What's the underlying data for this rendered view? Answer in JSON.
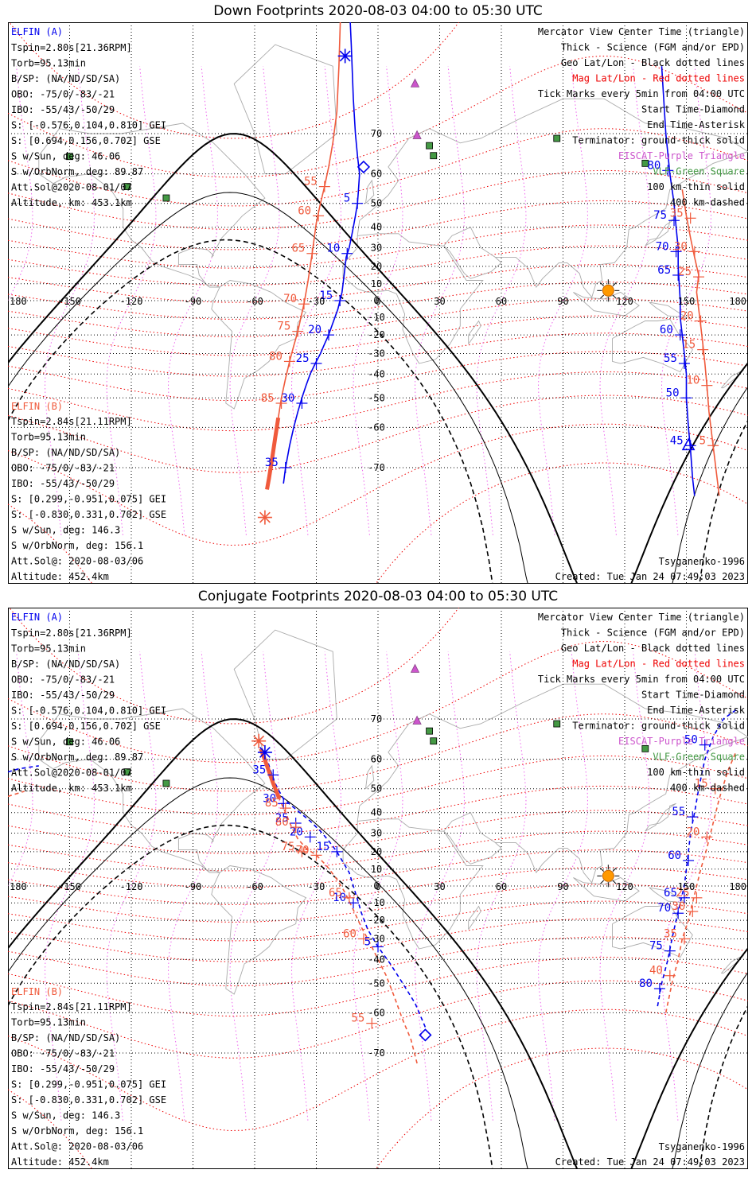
{
  "colors": {
    "elfin_a": "#0000ee",
    "elfin_b": "#f05a3c",
    "mag_grid": "#ee0000",
    "geo_grid": "#000000",
    "merid": "#ee66ee",
    "coast": "#aaaaaa",
    "purple": "#cc55cc",
    "green": "#449944"
  },
  "x_ticks": [
    "180",
    "-150",
    "-120",
    "-90",
    "-60",
    "-30",
    "0",
    "30",
    "60",
    "90",
    "120",
    "150",
    "180"
  ],
  "lat_labels": [
    "70",
    "60",
    "50",
    "40",
    "30",
    "20",
    "10",
    "0",
    "-10",
    "-20",
    "-30",
    "-40",
    "-50",
    "-60",
    "-70"
  ],
  "common": {
    "a_name": "ELFIN (A)",
    "a_info": [
      "Tspin=2.80s[21.36RPM]",
      "Torb=95.13min",
      "B/SP: (NA/ND/SD/SA)",
      "OBO: -75/0/-83/-21",
      "IBO: -55/43/-50/29",
      "S: [-0.576,0.104,0.810] GEI",
      "S: [0.694,0.156,0.702] GSE",
      "S w/Sun, deg: 46.06",
      "S w/OrbNorm, deg: 89.87",
      "Att.Sol@2020-08-01/07",
      "Altitude, km: 453.1km"
    ],
    "b_name": "ELFIN (B)",
    "b_info": [
      "Tspin=2.84s[21.11RPM]",
      "Torb=95.13min",
      "B/SP: (NA/ND/SD/SA)",
      "OBO: -75/0/-83/-21",
      "IBO: -55/43/-50/29",
      "S: [0.299,-0.951,0.075] GEI",
      "S: [-0.830,0.331,0.702] GSE",
      "S w/Sun, deg: 146.3",
      "S w/OrbNorm, deg: 156.1",
      "Att.Sol@: 2020-08-03/06",
      "Altitude: 452.4km"
    ],
    "legend": [
      "Mercator View Center Time (triangle)",
      "Thick - Science (FGM and/or EPD)",
      "Geo Lat/Lon - Black dotted lines",
      "Mag Lat/Lon - Red dotted lines",
      "Tick Marks every 5min from 04:00 UTC",
      "Start Time-Diamond",
      "End Time-Asterisk",
      "Terminator: ground-thick solid",
      "EISCAT-Purple Triangle",
      "VLF-Green Square",
      "100 km-thin solid",
      "400 km-dashed"
    ],
    "model": "Tsyganenko-1996",
    "created": "Created: Tue Jan 24 07:49:03 2023"
  },
  "panels": [
    {
      "title": "Down Footprints 2020-08-03 04:00 to 05:30 UTC",
      "a_track": [
        [
          -14,
          88
        ],
        [
          -13,
          82
        ],
        [
          -12,
          76
        ],
        [
          -11,
          70
        ],
        [
          -10,
          65
        ],
        [
          -9,
          60
        ],
        [
          -9.5,
          55
        ],
        [
          -10,
          50
        ],
        [
          -11,
          45
        ],
        [
          -12,
          40
        ],
        [
          -13,
          35
        ],
        [
          -14,
          30
        ],
        [
          -15.5,
          25
        ],
        [
          -16,
          20
        ],
        [
          -16.5,
          15
        ],
        [
          -17,
          10
        ],
        [
          -17.5,
          5
        ],
        [
          -18.5,
          0
        ],
        [
          -19.5,
          -5
        ],
        [
          -21,
          -10
        ],
        [
          -22.5,
          -15
        ],
        [
          -24,
          -20
        ],
        [
          -26,
          -25
        ],
        [
          -28,
          -30
        ],
        [
          -30.5,
          -35
        ],
        [
          -33,
          -40
        ],
        [
          -35,
          -45
        ],
        [
          -37,
          -50
        ],
        [
          -39,
          -55
        ],
        [
          -41,
          -60
        ],
        [
          -43,
          -65
        ],
        [
          -45,
          -70
        ],
        [
          -46,
          -73
        ]
      ],
      "a_ticks": [
        {
          "lon": -10,
          "lat": 50,
          "label": "5"
        },
        {
          "lon": -15,
          "lat": 27,
          "label": "10"
        },
        {
          "lon": -18.5,
          "lat": 0,
          "label": "15"
        },
        {
          "lon": -24,
          "lat": -20,
          "label": "20"
        },
        {
          "lon": -30,
          "lat": -35,
          "label": "25"
        },
        {
          "lon": -37,
          "lat": -52,
          "label": "30"
        },
        {
          "lon": -45,
          "lat": -70,
          "label": "35"
        },
        {
          "lon": 152,
          "lat": -65,
          "label": "45"
        },
        {
          "lon": 150,
          "lat": -50,
          "label": "50"
        },
        {
          "lon": 149,
          "lat": -35,
          "label": "55"
        },
        {
          "lon": 147,
          "lat": -20,
          "label": "60"
        },
        {
          "lon": 146,
          "lat": 15,
          "label": "65"
        },
        {
          "lon": 145,
          "lat": 28,
          "label": "70"
        },
        {
          "lon": 144,
          "lat": 43,
          "label": "75"
        },
        {
          "lon": 141,
          "lat": 61,
          "label": "80"
        }
      ],
      "a_track2": [
        [
          138,
          80
        ],
        [
          140,
          70
        ],
        [
          142,
          60
        ],
        [
          144,
          50
        ],
        [
          145,
          40
        ],
        [
          146,
          30
        ],
        [
          146,
          20
        ],
        [
          146.5,
          10
        ],
        [
          147,
          0
        ],
        [
          147,
          -10
        ],
        [
          148,
          -20
        ],
        [
          149,
          -30
        ],
        [
          150,
          -40
        ],
        [
          150,
          -50
        ],
        [
          151,
          -60
        ],
        [
          152,
          -66
        ],
        [
          153,
          -72
        ],
        [
          154,
          -75
        ]
      ],
      "a_start": [
        -7,
        62
      ],
      "a_end": [
        -16,
        81
      ],
      "a_center": [
        151,
        -65
      ],
      "b_track": [
        [
          -18,
          86
        ],
        [
          -19,
          80
        ],
        [
          -20,
          74
        ],
        [
          -22,
          68
        ],
        [
          -24,
          62
        ],
        [
          -26,
          56
        ],
        [
          -28,
          50
        ],
        [
          -30,
          42
        ],
        [
          -31,
          35
        ],
        [
          -32,
          27
        ],
        [
          -33,
          20
        ],
        [
          -34,
          12
        ],
        [
          -35,
          5
        ],
        [
          -36,
          -2
        ],
        [
          -37.5,
          -10
        ],
        [
          -39,
          -18
        ],
        [
          -41,
          -26
        ],
        [
          -43,
          -34
        ],
        [
          -45,
          -42
        ],
        [
          -47,
          -50
        ],
        [
          -48.5,
          -57
        ],
        [
          -50,
          -63
        ],
        [
          -51.5,
          -68
        ],
        [
          -53,
          -72
        ],
        [
          -54,
          -74
        ]
      ],
      "b_thick": [
        [
          -48.5,
          -57
        ],
        [
          -50,
          -63
        ],
        [
          -51.5,
          -68
        ],
        [
          -53,
          -72
        ],
        [
          -54,
          -74
        ]
      ],
      "b_ticks": [
        {
          "lon": -18,
          "lat": 86,
          "label": "50"
        },
        {
          "lon": -26,
          "lat": 56,
          "label": "55"
        },
        {
          "lon": -29,
          "lat": 45,
          "label": "60"
        },
        {
          "lon": -32,
          "lat": 27,
          "label": "65"
        },
        {
          "lon": -36,
          "lat": -2,
          "label": "70"
        },
        {
          "lon": -39,
          "lat": -18,
          "label": "75"
        },
        {
          "lon": -43,
          "lat": -34,
          "label": "80"
        },
        {
          "lon": -47,
          "lat": -52,
          "label": "85"
        },
        {
          "lon": 163,
          "lat": -65,
          "label": "5"
        },
        {
          "lon": 160,
          "lat": -45,
          "label": "10"
        },
        {
          "lon": 158,
          "lat": -28,
          "label": "15"
        },
        {
          "lon": 157,
          "lat": -12,
          "label": "20"
        },
        {
          "lon": 156,
          "lat": 14,
          "label": "25"
        },
        {
          "lon": 154,
          "lat": 28,
          "label": "30"
        },
        {
          "lon": 152,
          "lat": 44,
          "label": "35"
        }
      ],
      "b_track2": [
        [
          148,
          55
        ],
        [
          150,
          45
        ],
        [
          152,
          35
        ],
        [
          154,
          25
        ],
        [
          156,
          15
        ],
        [
          155,
          5
        ],
        [
          156,
          -5
        ],
        [
          157,
          -15
        ],
        [
          158,
          -25
        ],
        [
          159,
          -35
        ],
        [
          160,
          -45
        ],
        [
          161,
          -55
        ],
        [
          163,
          -65
        ],
        [
          166,
          -75
        ]
      ],
      "b_end": [
        -55,
        -78
      ]
    },
    {
      "title": "Conjugate Footprints 2020-08-03 04:00 to 05:30 UTC",
      "a_track": [
        [
          23,
          -64
        ],
        [
          18,
          -57
        ],
        [
          12,
          -50
        ],
        [
          6,
          -42
        ],
        [
          0,
          -34
        ],
        [
          -5,
          -25
        ],
        [
          -8,
          -16
        ],
        [
          -10,
          -8
        ],
        [
          -12,
          0
        ],
        [
          -14,
          8
        ],
        [
          -17,
          14
        ],
        [
          -20,
          20
        ],
        [
          -24,
          26
        ],
        [
          -28,
          31
        ],
        [
          -33,
          36
        ],
        [
          -38,
          40
        ],
        [
          -42,
          43
        ],
        [
          -46,
          46
        ],
        [
          -48,
          49
        ],
        [
          -50,
          52
        ],
        [
          -52,
          56
        ],
        [
          -54,
          60
        ]
      ],
      "a_ticks": [
        {
          "lon": 0,
          "lat": -34,
          "label": "5"
        },
        {
          "lon": -12,
          "lat": -10,
          "label": "10"
        },
        {
          "lon": -20,
          "lat": 20,
          "label": "15"
        },
        {
          "lon": -33,
          "lat": 28,
          "label": "20"
        },
        {
          "lon": -40,
          "lat": 35,
          "label": "25"
        },
        {
          "lon": -46,
          "lat": 44,
          "label": "30"
        },
        {
          "lon": -51,
          "lat": 55,
          "label": "35"
        },
        {
          "lon": 137,
          "lat": -52,
          "label": "80"
        },
        {
          "lon": 142,
          "lat": -36,
          "label": "75"
        },
        {
          "lon": 146,
          "lat": -16,
          "label": "70"
        },
        {
          "lon": 149,
          "lat": -7,
          "label": "65"
        },
        {
          "lon": 151,
          "lat": 15,
          "label": "60"
        },
        {
          "lon": 153,
          "lat": 38,
          "label": "55"
        },
        {
          "lon": 159,
          "lat": 64,
          "label": "50"
        }
      ],
      "a_track2": [
        [
          136,
          -58
        ],
        [
          138,
          -50
        ],
        [
          141,
          -40
        ],
        [
          143,
          -30
        ],
        [
          145,
          -20
        ],
        [
          147,
          -10
        ],
        [
          149,
          0
        ],
        [
          150,
          10
        ],
        [
          151,
          20
        ],
        [
          152,
          30
        ],
        [
          154,
          40
        ],
        [
          156,
          50
        ],
        [
          159,
          60
        ],
        [
          163,
          66
        ],
        [
          168,
          70
        ],
        [
          175,
          72
        ]
      ],
      "a_track3": [
        [
          -180,
          56
        ],
        [
          -175,
          57
        ],
        [
          -170,
          57.5
        ],
        [
          -165,
          58
        ]
      ],
      "a_start": [
        23,
        -66
      ],
      "a_end": [
        -55,
        62
      ],
      "b_track": [
        [
          19,
          -72
        ],
        [
          16,
          -67
        ],
        [
          12,
          -62
        ],
        [
          8,
          -55
        ],
        [
          4,
          -47
        ],
        [
          0,
          -40
        ],
        [
          -4,
          -32
        ],
        [
          -8,
          -24
        ],
        [
          -12,
          -14
        ],
        [
          -16,
          -4
        ],
        [
          -20,
          4
        ],
        [
          -25,
          12
        ],
        [
          -30,
          18
        ],
        [
          -35,
          22
        ],
        [
          -39,
          27
        ],
        [
          -42,
          33
        ],
        [
          -45,
          40
        ],
        [
          -48,
          46
        ],
        [
          -51,
          52
        ],
        [
          -54,
          58
        ],
        [
          -57,
          63
        ]
      ],
      "b_thick": [
        [
          -48,
          46
        ],
        [
          -51,
          52
        ],
        [
          -54,
          58
        ],
        [
          -57,
          63
        ]
      ],
      "b_ticks": [
        {
          "lon": -3,
          "lat": -63,
          "label": "55"
        },
        {
          "lon": -7,
          "lat": -30,
          "label": "60"
        },
        {
          "lon": -14,
          "lat": -7,
          "label": "65"
        },
        {
          "lon": -30,
          "lat": 18,
          "label": "70"
        },
        {
          "lon": -37,
          "lat": 20,
          "label": "75"
        },
        {
          "lon": -40,
          "lat": 33,
          "label": "80"
        },
        {
          "lon": -45,
          "lat": 42,
          "label": "85"
        },
        {
          "lon": 142,
          "lat": -47,
          "label": "40"
        },
        {
          "lon": 149,
          "lat": -30,
          "label": "35"
        },
        {
          "lon": 153,
          "lat": -15,
          "label": "30"
        },
        {
          "lon": 155,
          "lat": -7,
          "label": "25"
        },
        {
          "lon": 160,
          "lat": 28,
          "label": "20"
        },
        {
          "lon": 164,
          "lat": 50,
          "label": "15"
        }
      ],
      "b_track2": [
        [
          140,
          -60
        ],
        [
          143,
          -50
        ],
        [
          146,
          -40
        ],
        [
          148,
          -30
        ],
        [
          151,
          -20
        ],
        [
          153,
          -10
        ],
        [
          155,
          0
        ],
        [
          157,
          10
        ],
        [
          160,
          22
        ],
        [
          163,
          35
        ],
        [
          166,
          46
        ],
        [
          170,
          56
        ],
        [
          174,
          62
        ]
      ],
      "b_track3": [
        [
          -180,
          47
        ],
        [
          -176,
          48
        ],
        [
          -172,
          49
        ]
      ],
      "b_end": [
        -58,
        65
      ]
    }
  ]
}
